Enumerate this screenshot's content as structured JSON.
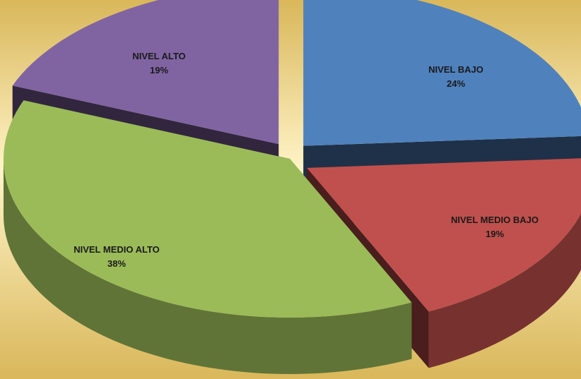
{
  "chart_data": {
    "type": "pie",
    "title": "",
    "style": "3d-exploded",
    "background": {
      "base": "#d9b75a",
      "highlight": "#fff4c8"
    },
    "slices": [
      {
        "label": "NIVEL BAJO",
        "value": 24,
        "value_label": "24%",
        "color": "#4f81bd",
        "exploded": true
      },
      {
        "label": "NIVEL MEDIO BAJO",
        "value": 19,
        "value_label": "19%",
        "color": "#c0504d",
        "exploded": true
      },
      {
        "label": "NIVEL MEDIO ALTO",
        "value": 38,
        "value_label": "38%",
        "color": "#9bbb59",
        "exploded": false
      },
      {
        "label": "NIVEL ALTO",
        "value": 19,
        "value_label": "19%",
        "color": "#8064a2",
        "exploded": true
      }
    ]
  }
}
